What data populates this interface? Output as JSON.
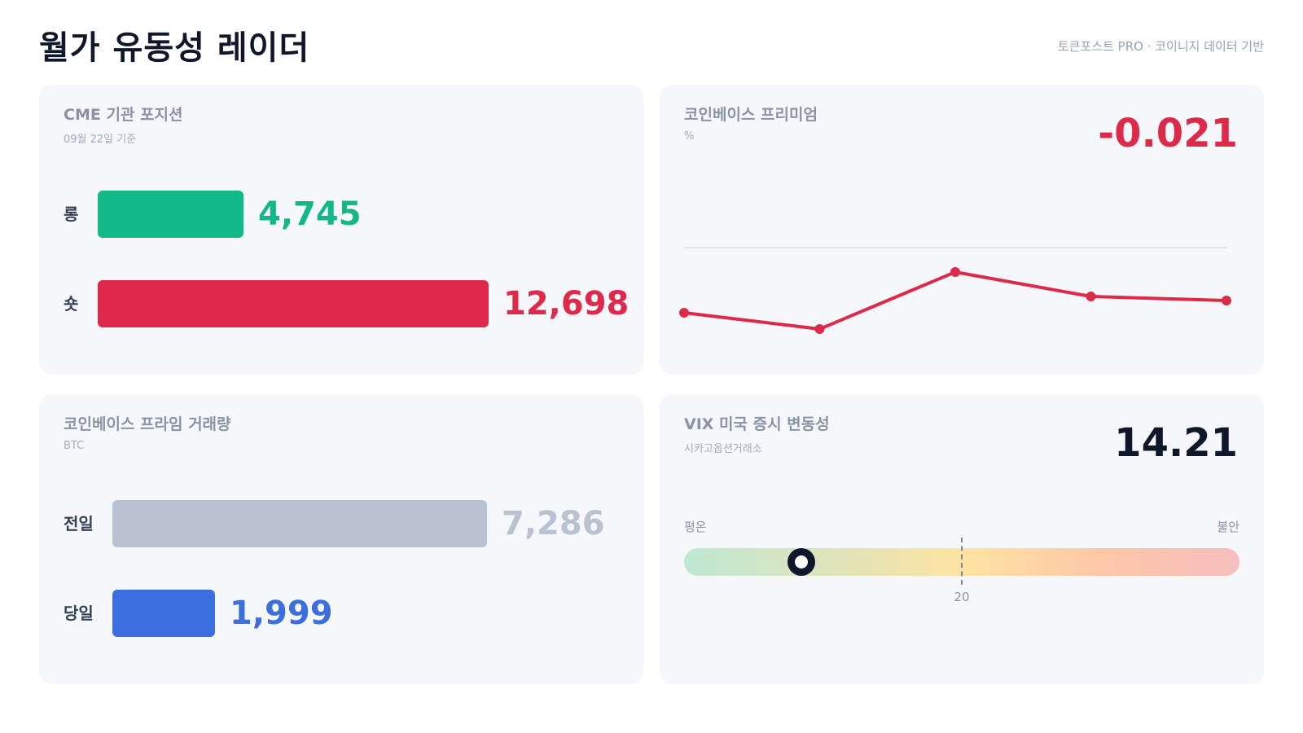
{
  "header": {
    "title": "월가 유동성 레이더",
    "source": "토큰포스트 PRO · 코이니지 데이터 기반"
  },
  "colors": {
    "long": "#12b886",
    "short": "#e0284a",
    "prev": "#b8c2d1",
    "today": "#3b6fe0",
    "premium_line": "#dd2a48",
    "vix_value": "#0f172a"
  },
  "cme": {
    "title": "CME 기관 포지션",
    "subtitle": "09월 22일 기준",
    "rows": [
      {
        "label": "롱",
        "value": 4745,
        "value_text": "4,745"
      },
      {
        "label": "숏",
        "value": 12698,
        "value_text": "12,698"
      }
    ]
  },
  "premium": {
    "title": "코인베이스 프리미엄",
    "subtitle": "%",
    "value_text": "-0.021",
    "chart_data": {
      "type": "line",
      "x": [
        1,
        2,
        3,
        4,
        5
      ],
      "series": [
        {
          "values": [
            -0.08,
            -0.1,
            -0.03,
            -0.06,
            -0.065
          ]
        }
      ],
      "ylim": [
        -0.125,
        0.05
      ],
      "reference_line": 0
    }
  },
  "volume": {
    "title": "코인베이스 프라임 거래량",
    "subtitle": "BTC",
    "rows": [
      {
        "label": "전일",
        "value": 7286,
        "value_text": "7,286"
      },
      {
        "label": "당일",
        "value": 1999,
        "value_text": "1,999"
      }
    ]
  },
  "vix": {
    "title": "VIX 미국 증시 변동성",
    "subtitle": "시카고옵션거래소",
    "value_text": "14.21",
    "low_label": "평온",
    "high_label": "불안",
    "threshold_label": "20",
    "threshold": 20,
    "value": 14.21,
    "range": [
      10,
      30
    ]
  }
}
